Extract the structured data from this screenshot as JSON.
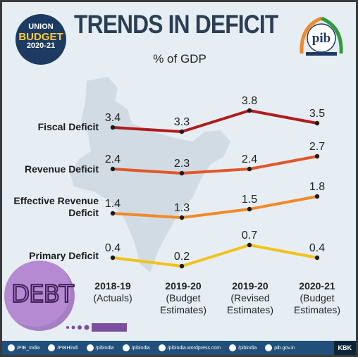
{
  "header": {
    "badge": {
      "line1": "UNION",
      "line2": "BUDGET",
      "line3": "2020-21"
    },
    "title": "TRENDS IN DEFICIT",
    "subtitle": "% of GDP",
    "logo_text": "pib"
  },
  "chart_data": {
    "type": "line",
    "title": "TRENDS IN DEFICIT",
    "subtitle": "% of GDP",
    "categories": [
      {
        "year": "2018-19",
        "note": "(Actuals)"
      },
      {
        "year": "2019-20",
        "note": "(Budget Estimates)"
      },
      {
        "year": "2019-20",
        "note": "(Revised Estimates)"
      },
      {
        "year": "2020-21",
        "note": "(Budget Estimates)"
      }
    ],
    "series": [
      {
        "name": "Fiscal Deficit",
        "values": [
          3.4,
          3.3,
          3.8,
          3.5
        ],
        "color": "#b01c1c"
      },
      {
        "name": "Revenue Deficit",
        "values": [
          2.4,
          2.3,
          2.4,
          2.7
        ],
        "color": "#e2562a"
      },
      {
        "name": "Effective Revenue Deficit",
        "values": [
          1.4,
          1.3,
          1.5,
          1.8
        ],
        "color": "#f08a2a"
      },
      {
        "name": "Primary Deficit",
        "values": [
          0.4,
          0.2,
          0.7,
          0.4
        ],
        "color": "#f2c21b"
      }
    ],
    "xlabel": "",
    "ylabel": "",
    "grid": false,
    "legend": "none"
  },
  "decor": {
    "debt_word": "DEBT"
  },
  "footer": {
    "items": [
      "/PIB_India",
      "/PIBHindi",
      "/pibindia",
      "/pibindia",
      "/pibindia.wordpress.com",
      "/pibindia",
      "pib.gov.in"
    ],
    "tag": "KBK"
  }
}
